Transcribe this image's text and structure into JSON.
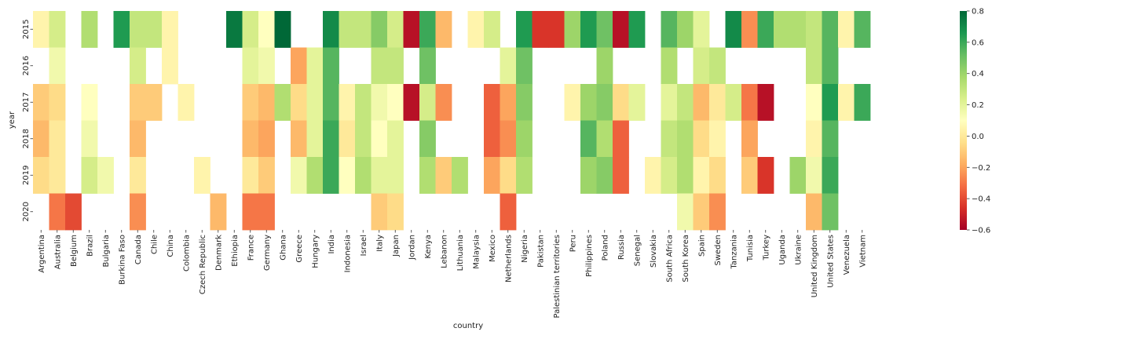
{
  "chart_data": {
    "type": "heatmap",
    "xlabel": "country",
    "ylabel": "year",
    "colormap": "RdYlGn",
    "color_range": [
      -0.6,
      0.8
    ],
    "colorbar_ticks": [
      "0.8",
      "0.6",
      "0.4",
      "0.2",
      "0.0",
      "−0.2",
      "−0.4",
      "−0.6"
    ],
    "colorbar_tick_values": [
      0.8,
      0.6,
      0.4,
      0.2,
      0.0,
      -0.2,
      -0.4,
      -0.6
    ],
    "y_categories": [
      "2015",
      "2016",
      "2017",
      "2018",
      "2019",
      "2020"
    ],
    "x_categories": [
      "Argentina",
      "Australia",
      "Belgium",
      "Brazil",
      "Bulgaria",
      "Burkina Faso",
      "Canada",
      "Chile",
      "China",
      "Colombia",
      "Czech Republic",
      "Denmark",
      "Ethiopia",
      "France",
      "Germany",
      "Ghana",
      "Greece",
      "Hungary",
      "India",
      "Indonesia",
      "Israel",
      "Italy",
      "Japan",
      "Jordan",
      "Kenya",
      "Lebanon",
      "Lithuania",
      "Malaysia",
      "Mexico",
      "Netherlands",
      "Nigeria",
      "Pakistan",
      "Palestinian territories",
      "Peru",
      "Philippines",
      "Poland",
      "Russia",
      "Senegal",
      "Slovakia",
      "South Africa",
      "South Korea",
      "Spain",
      "Sweden",
      "Tanzania",
      "Tunisia",
      "Turkey",
      "Uganda",
      "Ukraine",
      "United Kingdom",
      "United States",
      "Venezuela",
      "Vietnam"
    ],
    "values": [
      [
        0.05,
        0.25,
        null,
        0.35,
        null,
        0.65,
        0.3,
        0.3,
        0.05,
        null,
        null,
        null,
        0.75,
        0.25,
        0.1,
        0.8,
        null,
        null,
        0.7,
        0.3,
        0.3,
        0.45,
        0.25,
        -0.55,
        0.6,
        -0.15,
        null,
        0.05,
        0.25,
        null,
        0.65,
        -0.45,
        -0.45,
        0.4,
        0.65,
        0.5,
        -0.55,
        0.65,
        null,
        0.55,
        0.4,
        0.2,
        null,
        0.7,
        -0.25,
        0.6,
        0.35,
        0.35,
        0.3,
        0.55,
        0.05,
        0.55
      ],
      [
        null,
        0.15,
        null,
        null,
        null,
        null,
        0.25,
        null,
        0.05,
        null,
        null,
        null,
        null,
        0.2,
        0.15,
        null,
        -0.2,
        0.2,
        0.55,
        null,
        null,
        0.3,
        0.3,
        null,
        0.5,
        null,
        null,
        null,
        null,
        0.2,
        0.5,
        null,
        null,
        null,
        null,
        0.4,
        null,
        null,
        null,
        0.35,
        null,
        0.25,
        0.3,
        null,
        null,
        null,
        null,
        null,
        0.3,
        0.55,
        null,
        null
      ],
      [
        -0.1,
        -0.05,
        null,
        0.1,
        null,
        null,
        -0.1,
        -0.1,
        null,
        0.05,
        null,
        null,
        null,
        -0.1,
        -0.15,
        0.35,
        -0.05,
        0.2,
        0.55,
        0.05,
        0.3,
        0.15,
        0.1,
        -0.55,
        0.25,
        -0.25,
        null,
        null,
        -0.35,
        -0.2,
        0.45,
        null,
        null,
        0.05,
        0.4,
        0.45,
        -0.05,
        0.2,
        null,
        0.2,
        0.3,
        -0.15,
        0.0,
        0.25,
        -0.3,
        -0.55,
        null,
        null,
        0.1,
        0.65,
        0.05,
        0.6
      ],
      [
        -0.15,
        0.0,
        null,
        0.15,
        null,
        null,
        -0.15,
        null,
        null,
        null,
        null,
        null,
        null,
        -0.15,
        -0.2,
        null,
        -0.15,
        0.2,
        0.6,
        0.0,
        0.3,
        0.1,
        0.2,
        null,
        0.45,
        null,
        null,
        null,
        -0.35,
        -0.25,
        0.4,
        null,
        null,
        null,
        0.55,
        0.35,
        -0.35,
        null,
        null,
        0.3,
        0.35,
        -0.05,
        0.05,
        null,
        -0.2,
        null,
        null,
        null,
        0.05,
        0.55,
        null,
        null
      ],
      [
        -0.05,
        0.0,
        null,
        0.25,
        0.15,
        null,
        0.0,
        null,
        null,
        null,
        0.05,
        null,
        null,
        0.0,
        -0.1,
        null,
        0.15,
        0.35,
        0.6,
        0.1,
        0.35,
        0.2,
        0.2,
        null,
        0.35,
        -0.1,
        0.35,
        null,
        -0.2,
        -0.05,
        0.35,
        null,
        null,
        null,
        0.4,
        0.45,
        -0.35,
        null,
        0.05,
        0.25,
        0.35,
        0.05,
        -0.05,
        null,
        -0.1,
        -0.45,
        null,
        0.4,
        0.15,
        0.6,
        null,
        null
      ],
      [
        null,
        -0.3,
        -0.4,
        null,
        null,
        null,
        -0.25,
        null,
        null,
        null,
        null,
        -0.15,
        null,
        -0.3,
        -0.3,
        null,
        null,
        null,
        null,
        null,
        null,
        -0.1,
        -0.05,
        null,
        null,
        null,
        null,
        null,
        null,
        -0.35,
        null,
        null,
        null,
        null,
        null,
        null,
        null,
        null,
        null,
        null,
        0.15,
        -0.1,
        -0.25,
        null,
        null,
        null,
        null,
        null,
        -0.15,
        0.5,
        null,
        null
      ]
    ]
  }
}
